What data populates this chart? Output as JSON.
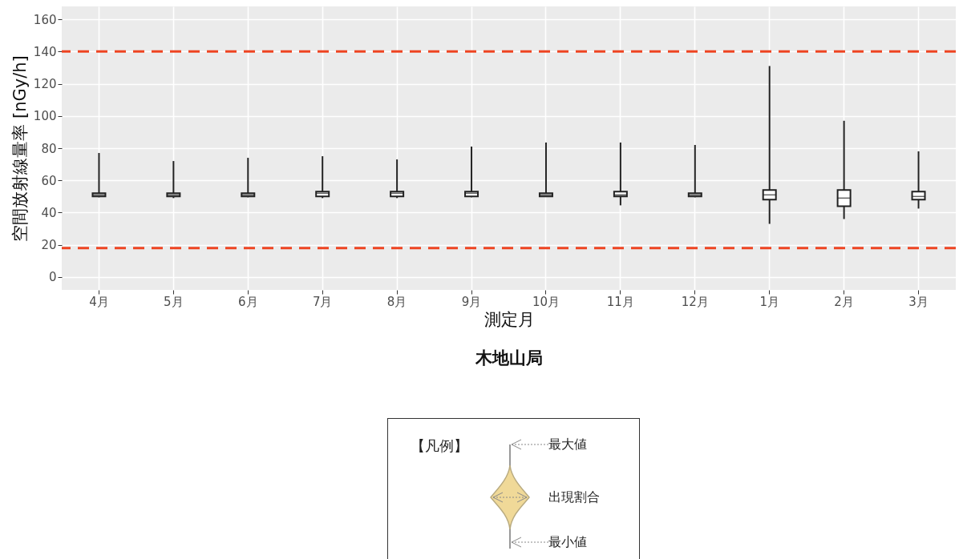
{
  "chart_data": {
    "type": "box",
    "title": "木地山局",
    "xlabel": "測定月",
    "ylabel": "空間放射線量率 [nGy/h]",
    "categories": [
      "4月",
      "5月",
      "6月",
      "7月",
      "8月",
      "9月",
      "10月",
      "11月",
      "12月",
      "1月",
      "2月",
      "3月"
    ],
    "boxes": [
      {
        "low": 49.5,
        "q1": 50,
        "median": 51,
        "q3": 52,
        "high": 77
      },
      {
        "low": 49,
        "q1": 50,
        "median": 51,
        "q3": 52,
        "high": 72
      },
      {
        "low": 49.5,
        "q1": 50,
        "median": 51,
        "q3": 52,
        "high": 74
      },
      {
        "low": 49,
        "q1": 50,
        "median": 52,
        "q3": 53,
        "high": 75
      },
      {
        "low": 49,
        "q1": 50,
        "median": 52,
        "q3": 53,
        "high": 73
      },
      {
        "low": 49.5,
        "q1": 50,
        "median": 52,
        "q3": 53,
        "high": 81
      },
      {
        "low": 50,
        "q1": 50,
        "median": 51,
        "q3": 52,
        "high": 83.5
      },
      {
        "low": 44.5,
        "q1": 50,
        "median": 51,
        "q3": 53,
        "high": 83.5
      },
      {
        "low": 49.5,
        "q1": 50,
        "median": 51,
        "q3": 52,
        "high": 82
      },
      {
        "low": 33,
        "q1": 48,
        "median": 51,
        "q3": 54,
        "high": 131
      },
      {
        "low": 36,
        "q1": 44,
        "median": 49,
        "q3": 54,
        "high": 97
      },
      {
        "low": 42.5,
        "q1": 48,
        "median": 50,
        "q3": 53,
        "high": 78
      }
    ],
    "color": "#ffffff",
    "ylim": [
      -8,
      168
    ],
    "yticks": [
      0,
      20,
      40,
      60,
      80,
      100,
      120,
      140,
      160
    ],
    "grid": true,
    "ref_lines": [
      {
        "axis": "y",
        "value": 140,
        "color": "#ee4422",
        "line_style": "dashed"
      },
      {
        "axis": "y",
        "value": 18,
        "color": "#ee4422",
        "line_style": "dashed"
      }
    ],
    "annotations": [
      "【凡例】",
      "最大値",
      "出現割合",
      "最小値"
    ]
  }
}
